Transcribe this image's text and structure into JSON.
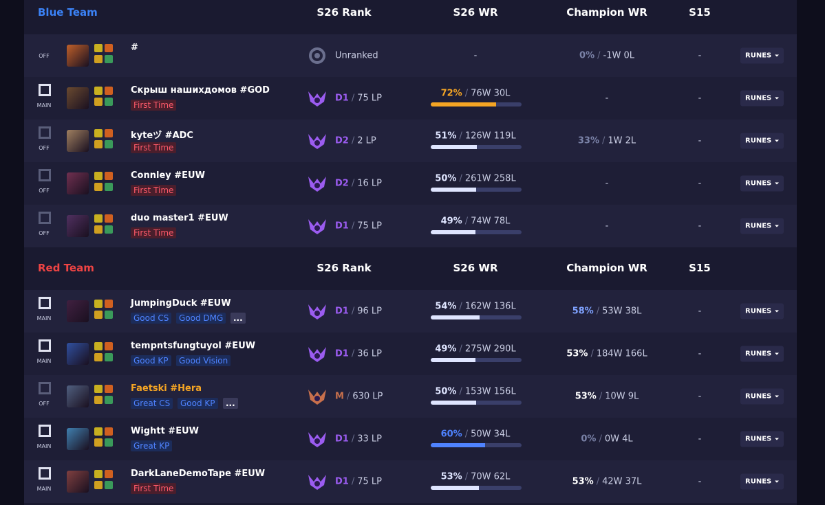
{
  "separator": "/",
  "runes_button": "RUNES",
  "teams": [
    {
      "name": "Blue Team",
      "name_color": "#3b82f6",
      "headers": [
        "S26 Rank",
        "S26 WR",
        "Champion WR",
        "S15"
      ],
      "players": [
        {
          "role": "OFF",
          "name": "#",
          "tags": [],
          "rank": {
            "text": "Unranked"
          },
          "wr": {
            "text": "-"
          },
          "champ": {
            "pct": "0%",
            "record": "-1W 0L",
            "color": "#7b83a8"
          },
          "s15": "-"
        },
        {
          "role": "MAIN",
          "name": "Скрыш нашихдомов #GOD",
          "tags": [
            {
              "text": "First Time",
              "kind": "warning"
            }
          ],
          "rank": {
            "tier": "D1",
            "lp": "75 LP",
            "color": "#9b5cf0"
          },
          "wr": {
            "value": 72,
            "label": "72%",
            "record": "76W 30L",
            "color": "#f5a524"
          },
          "champ": {
            "text": "-"
          },
          "s15": "-"
        },
        {
          "role": "OFF",
          "name": "kyteヅ #ADC",
          "tags": [
            {
              "text": "First Time",
              "kind": "warning"
            }
          ],
          "rank": {
            "tier": "D2",
            "lp": "2 LP",
            "color": "#9b5cf0"
          },
          "wr": {
            "value": 51,
            "label": "51%",
            "record": "126W 119L",
            "color": "#dfe5ff"
          },
          "champ": {
            "pct": "33%",
            "record": "1W 2L",
            "color": "#7b83a8"
          },
          "s15": "-"
        },
        {
          "role": "OFF",
          "name": "Connley #EUW",
          "tags": [
            {
              "text": "First Time",
              "kind": "warning"
            }
          ],
          "rank": {
            "tier": "D2",
            "lp": "16 LP",
            "color": "#9b5cf0"
          },
          "wr": {
            "value": 50,
            "label": "50%",
            "record": "261W 258L",
            "color": "#dfe5ff"
          },
          "champ": {
            "text": "-"
          },
          "s15": "-"
        },
        {
          "role": "OFF",
          "name": "duo master1 #EUW",
          "tags": [
            {
              "text": "First Time",
              "kind": "warning"
            }
          ],
          "rank": {
            "tier": "D1",
            "lp": "75 LP",
            "color": "#9b5cf0"
          },
          "wr": {
            "value": 49,
            "label": "49%",
            "record": "74W 78L",
            "color": "#dfe5ff"
          },
          "champ": {
            "text": "-"
          },
          "s15": "-"
        }
      ]
    },
    {
      "name": "Red Team",
      "name_color": "#ef4444",
      "headers": [
        "S26 Rank",
        "S26 WR",
        "Champion WR",
        "S15"
      ],
      "players": [
        {
          "role": "MAIN",
          "name": "JumpingDuck #EUW",
          "tags": [
            {
              "text": "Good CS",
              "kind": "info"
            },
            {
              "text": "Good DMG",
              "kind": "info"
            },
            {
              "text": "...",
              "kind": "more"
            }
          ],
          "rank": {
            "tier": "D1",
            "lp": "96 LP",
            "color": "#9b5cf0"
          },
          "wr": {
            "value": 54,
            "label": "54%",
            "record": "162W 136L",
            "color": "#dfe5ff"
          },
          "champ": {
            "pct": "58%",
            "record": "53W 38L",
            "color": "#7fa2ff"
          },
          "s15": "-"
        },
        {
          "role": "MAIN",
          "name": "tempntsfungtuyol #EUW",
          "tags": [
            {
              "text": "Good KP",
              "kind": "info"
            },
            {
              "text": "Good Vision",
              "kind": "info"
            }
          ],
          "rank": {
            "tier": "D1",
            "lp": "36 LP",
            "color": "#9b5cf0"
          },
          "wr": {
            "value": 49,
            "label": "49%",
            "record": "275W 290L",
            "color": "#dfe5ff"
          },
          "champ": {
            "pct": "53%",
            "record": "184W 166L",
            "color": "#ffffff"
          },
          "s15": "-"
        },
        {
          "role": "OFF",
          "name": "Faetski #Hera",
          "name_color": "#f5a524",
          "tags": [
            {
              "text": "Great CS",
              "kind": "info"
            },
            {
              "text": "Good KP",
              "kind": "info"
            },
            {
              "text": "...",
              "kind": "more"
            }
          ],
          "rank": {
            "tier": "M",
            "lp": "630 LP",
            "color": "#c8704c"
          },
          "wr": {
            "value": 50,
            "label": "50%",
            "record": "153W 156L",
            "color": "#dfe5ff"
          },
          "champ": {
            "pct": "53%",
            "record": "10W 9L",
            "color": "#ffffff"
          },
          "s15": "-"
        },
        {
          "role": "MAIN",
          "name": "Wightt #EUW",
          "tags": [
            {
              "text": "Great KP",
              "kind": "info"
            }
          ],
          "rank": {
            "tier": "D1",
            "lp": "33 LP",
            "color": "#9b5cf0"
          },
          "wr": {
            "value": 60,
            "label": "60%",
            "record": "50W 34L",
            "color": "#4f83ff"
          },
          "champ": {
            "pct": "0%",
            "record": "0W 4L",
            "color": "#7b83a8"
          },
          "s15": "-"
        },
        {
          "role": "MAIN",
          "name": "DarkLaneDemoTape #EUW",
          "tags": [
            {
              "text": "First Time",
              "kind": "warning"
            }
          ],
          "rank": {
            "tier": "D1",
            "lp": "75 LP",
            "color": "#9b5cf0"
          },
          "wr": {
            "value": 53,
            "label": "53%",
            "record": "70W 62L",
            "color": "#dfe5ff"
          },
          "champ": {
            "pct": "53%",
            "record": "42W 37L",
            "color": "#ffffff"
          },
          "s15": "-"
        }
      ]
    }
  ]
}
